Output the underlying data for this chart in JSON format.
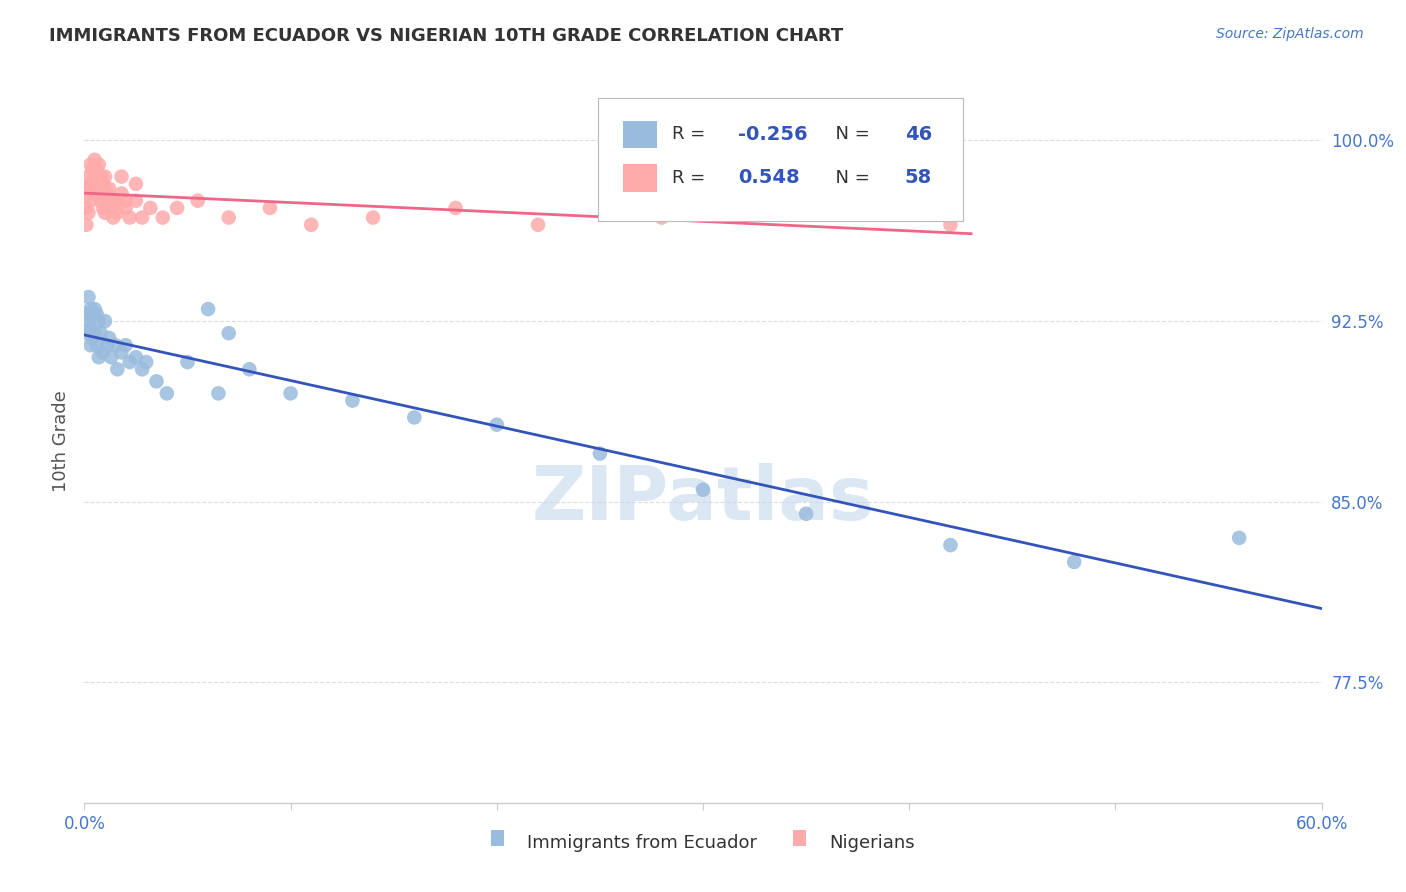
{
  "title": "IMMIGRANTS FROM ECUADOR VS NIGERIAN 10TH GRADE CORRELATION CHART",
  "source": "Source: ZipAtlas.com",
  "ylabel": "10th Grade",
  "xlim": [
    0.0,
    0.6
  ],
  "ylim": [
    0.725,
    1.025
  ],
  "legend_r_ecuador": "-0.256",
  "legend_n_ecuador": "46",
  "legend_r_nigerian": "0.548",
  "legend_n_nigerian": "58",
  "color_ecuador": "#99BBDD",
  "color_nigerian": "#FFAAAA",
  "color_ecuador_line": "#3355BB",
  "color_nigerian_line": "#EE6688",
  "watermark": "ZIPatlas",
  "background_color": "#FFFFFF",
  "grid_color": "#DDDDDD",
  "ecuador_x": [
    0.001,
    0.001,
    0.002,
    0.002,
    0.003,
    0.003,
    0.003,
    0.004,
    0.004,
    0.005,
    0.005,
    0.006,
    0.006,
    0.007,
    0.007,
    0.008,
    0.009,
    0.01,
    0.011,
    0.012,
    0.013,
    0.015,
    0.016,
    0.018,
    0.02,
    0.022,
    0.025,
    0.028,
    0.03,
    0.035,
    0.04,
    0.05,
    0.065,
    0.08,
    0.1,
    0.13,
    0.16,
    0.2,
    0.25,
    0.3,
    0.35,
    0.42,
    0.48,
    0.56,
    0.06,
    0.07
  ],
  "ecuador_y": [
    0.928,
    0.92,
    0.935,
    0.925,
    0.93,
    0.922,
    0.915,
    0.928,
    0.918,
    0.93,
    0.92,
    0.928,
    0.915,
    0.925,
    0.91,
    0.92,
    0.912,
    0.925,
    0.915,
    0.918,
    0.91,
    0.915,
    0.905,
    0.912,
    0.915,
    0.908,
    0.91,
    0.905,
    0.908,
    0.9,
    0.895,
    0.908,
    0.895,
    0.905,
    0.895,
    0.892,
    0.885,
    0.882,
    0.87,
    0.855,
    0.845,
    0.832,
    0.825,
    0.835,
    0.93,
    0.92
  ],
  "nigerian_x": [
    0.001,
    0.001,
    0.001,
    0.002,
    0.002,
    0.002,
    0.003,
    0.003,
    0.003,
    0.004,
    0.004,
    0.005,
    0.005,
    0.005,
    0.006,
    0.006,
    0.007,
    0.007,
    0.008,
    0.008,
    0.009,
    0.009,
    0.01,
    0.01,
    0.011,
    0.012,
    0.013,
    0.014,
    0.015,
    0.016,
    0.018,
    0.02,
    0.022,
    0.025,
    0.028,
    0.032,
    0.038,
    0.045,
    0.055,
    0.07,
    0.09,
    0.11,
    0.14,
    0.18,
    0.22,
    0.28,
    0.35,
    0.42,
    0.005,
    0.006,
    0.007,
    0.008,
    0.01,
    0.012,
    0.015,
    0.018,
    0.02,
    0.025
  ],
  "nigerian_y": [
    0.98,
    0.972,
    0.965,
    0.985,
    0.978,
    0.97,
    0.99,
    0.982,
    0.975,
    0.988,
    0.98,
    0.992,
    0.985,
    0.978,
    0.988,
    0.98,
    0.985,
    0.978,
    0.985,
    0.975,
    0.982,
    0.972,
    0.98,
    0.97,
    0.978,
    0.975,
    0.972,
    0.968,
    0.975,
    0.97,
    0.978,
    0.972,
    0.968,
    0.975,
    0.968,
    0.972,
    0.968,
    0.972,
    0.975,
    0.968,
    0.972,
    0.965,
    0.968,
    0.972,
    0.965,
    0.968,
    0.972,
    0.965,
    0.988,
    0.982,
    0.99,
    0.978,
    0.985,
    0.98,
    0.975,
    0.985,
    0.975,
    0.982
  ]
}
